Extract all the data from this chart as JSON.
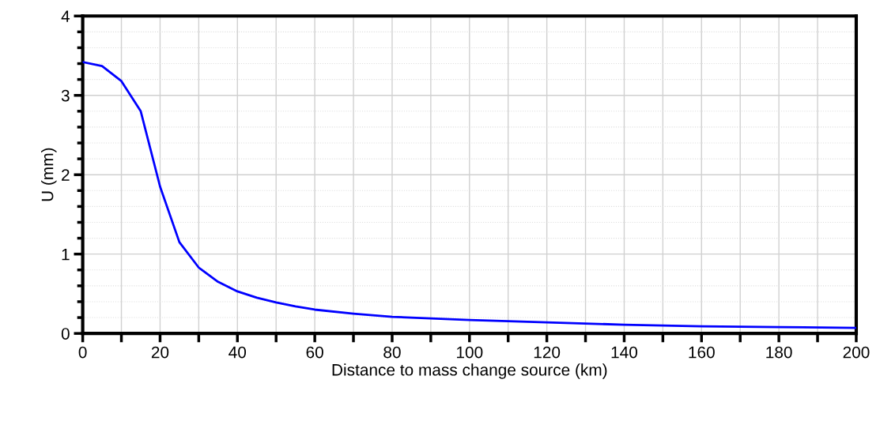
{
  "chart_data": {
    "type": "line",
    "xlabel": "Distance to mass change source (km)",
    "ylabel": "U (mm)",
    "xlim": [
      0,
      200
    ],
    "ylim": [
      0,
      4
    ],
    "xticks": [
      0,
      {
        "value": 10,
        "label": null
      },
      20,
      {
        "value": 30,
        "label": null
      },
      40,
      {
        "value": 50,
        "label": null
      },
      60,
      {
        "value": 70,
        "label": null
      },
      80,
      {
        "value": 90,
        "label": null
      },
      100,
      {
        "value": 110,
        "label": null
      },
      120,
      {
        "value": 130,
        "label": null
      },
      140,
      {
        "value": 150,
        "label": null
      },
      160,
      {
        "value": 170,
        "label": null
      },
      180,
      {
        "value": 190,
        "label": null
      },
      200
    ],
    "yticks": [
      0,
      1,
      2,
      3,
      4
    ],
    "grid": true,
    "marker": "none",
    "line_style": "solid",
    "series": [
      {
        "color": "#0000ff",
        "x": [
          0,
          5,
          10,
          15,
          20,
          25,
          30,
          35,
          40,
          45,
          50,
          55,
          60,
          70,
          80,
          90,
          100,
          120,
          140,
          160,
          180,
          200
        ],
        "values": [
          3.42,
          3.37,
          3.18,
          2.8,
          1.85,
          1.15,
          0.83,
          0.65,
          0.53,
          0.45,
          0.39,
          0.34,
          0.3,
          0.25,
          0.21,
          0.19,
          0.17,
          0.14,
          0.11,
          0.09,
          0.08,
          0.07
        ]
      }
    ]
  }
}
